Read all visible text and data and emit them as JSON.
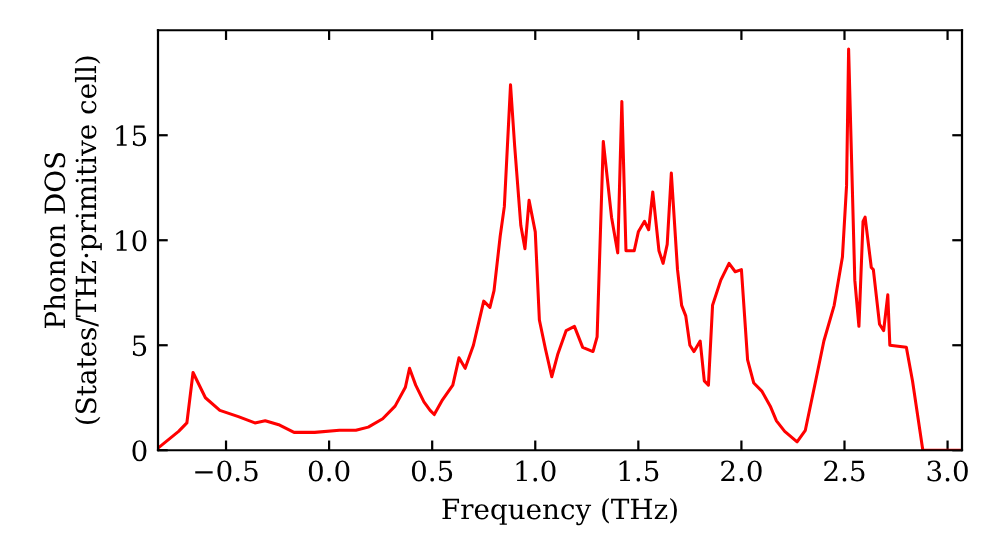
{
  "chart_data": {
    "type": "line",
    "xlabel": "Frequency (THz)",
    "ylabel": "Phonon DOS\n(States/THz·primitive cell)",
    "xlim": [
      -0.83,
      3.07
    ],
    "ylim": [
      0,
      20
    ],
    "xticks": [
      {
        "value": -0.5,
        "label": "−0.5"
      },
      {
        "value": 0.0,
        "label": "0.0"
      },
      {
        "value": 0.5,
        "label": "0.5"
      },
      {
        "value": 1.0,
        "label": "1.0"
      },
      {
        "value": 1.5,
        "label": "1.5"
      },
      {
        "value": 2.0,
        "label": "2.0"
      },
      {
        "value": 2.5,
        "label": "2.5"
      },
      {
        "value": 3.0,
        "label": "3.0"
      }
    ],
    "yticks": [
      0,
      5,
      10,
      15
    ],
    "grid": false,
    "legend": false,
    "marker": "none",
    "line_style": "solid",
    "series": [
      {
        "color": "#ff0000",
        "x": [
          -0.83,
          -0.73,
          -0.69,
          -0.66,
          -0.6,
          -0.53,
          -0.44,
          -0.36,
          -0.31,
          -0.24,
          -0.17,
          -0.07,
          0.05,
          0.13,
          0.19,
          0.26,
          0.32,
          0.37,
          0.39,
          0.42,
          0.46,
          0.49,
          0.51,
          0.55,
          0.6,
          0.63,
          0.66,
          0.7,
          0.75,
          0.78,
          0.8,
          0.83,
          0.85,
          0.88,
          0.9,
          0.93,
          0.95,
          0.97,
          1.0,
          1.02,
          1.05,
          1.08,
          1.11,
          1.15,
          1.19,
          1.23,
          1.28,
          1.3,
          1.33,
          1.37,
          1.4,
          1.42,
          1.44,
          1.48,
          1.5,
          1.53,
          1.55,
          1.57,
          1.6,
          1.62,
          1.64,
          1.66,
          1.69,
          1.71,
          1.73,
          1.75,
          1.77,
          1.8,
          1.82,
          1.84,
          1.86,
          1.9,
          1.94,
          1.97,
          2.0,
          2.03,
          2.06,
          2.1,
          2.14,
          2.17,
          2.21,
          2.27,
          2.31,
          2.36,
          2.4,
          2.45,
          2.49,
          2.51,
          2.52,
          2.55,
          2.57,
          2.59,
          2.6,
          2.63,
          2.64,
          2.67,
          2.69,
          2.71,
          2.72,
          2.8,
          2.83,
          2.88,
          3.07
        ],
        "values": [
          0.1,
          0.9,
          1.3,
          3.7,
          2.5,
          1.9,
          1.6,
          1.3,
          1.4,
          1.2,
          0.85,
          0.85,
          0.95,
          0.95,
          1.1,
          1.5,
          2.1,
          3.0,
          3.9,
          3.1,
          2.3,
          1.9,
          1.7,
          2.4,
          3.1,
          4.4,
          3.9,
          5.0,
          7.1,
          6.8,
          7.6,
          10.2,
          11.6,
          17.4,
          14.5,
          10.7,
          9.6,
          11.9,
          10.4,
          6.2,
          4.8,
          3.5,
          4.6,
          5.7,
          5.9,
          4.9,
          4.7,
          5.4,
          14.7,
          11.1,
          9.4,
          16.6,
          9.5,
          9.5,
          10.4,
          10.9,
          10.5,
          12.3,
          9.5,
          8.9,
          9.8,
          13.2,
          8.6,
          6.9,
          6.4,
          5.0,
          4.7,
          5.2,
          3.3,
          3.1,
          6.9,
          8.1,
          8.9,
          8.5,
          8.6,
          4.3,
          3.2,
          2.8,
          2.1,
          1.4,
          0.9,
          0.4,
          0.95,
          3.3,
          5.2,
          6.9,
          9.2,
          12.6,
          19.1,
          8.1,
          5.9,
          10.9,
          11.1,
          8.7,
          8.6,
          6.0,
          5.7,
          7.4,
          5.0,
          4.9,
          3.3,
          0.0,
          0.0
        ]
      }
    ]
  }
}
